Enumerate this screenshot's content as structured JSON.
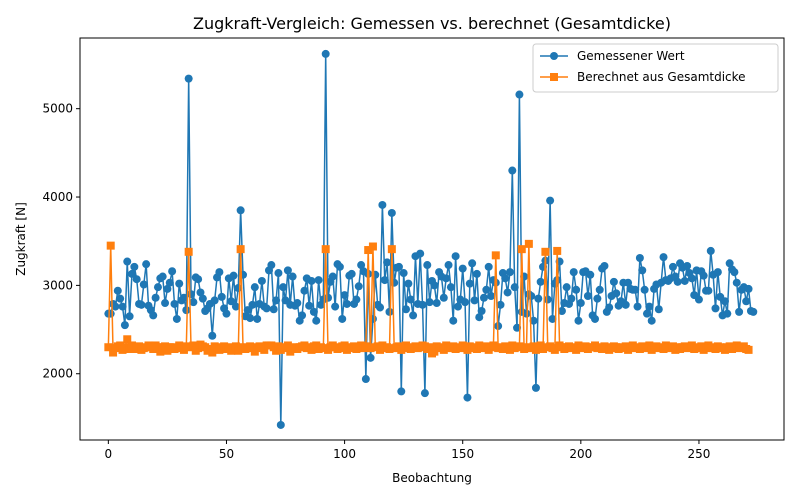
{
  "chart_data": {
    "type": "line",
    "title": "Zugkraft-Vergleich: Gemessen vs. berechnet (Gesamtdicke)",
    "xlabel": "Beobachtung",
    "ylabel": "Zugkraft [N]",
    "xlim": [
      -12,
      286
    ],
    "ylim": [
      1250,
      5800
    ],
    "xticks": [
      0,
      50,
      100,
      150,
      200,
      250
    ],
    "yticks": [
      2000,
      3000,
      4000,
      5000
    ],
    "grid": false,
    "legend_position": "upper right",
    "colors": {
      "measured": "#1f77b4",
      "computed": "#ff7f0e"
    },
    "series": [
      {
        "name": "Gemessener Wert",
        "marker": "circle",
        "values": [
          2680,
          2680,
          2790,
          2760,
          2940,
          2850,
          2760,
          2550,
          3270,
          2650,
          3130,
          3210,
          3070,
          2790,
          2780,
          3010,
          3240,
          2770,
          2720,
          2660,
          2860,
          2980,
          3080,
          3100,
          2800,
          2960,
          3030,
          3160,
          2790,
          2620,
          3020,
          2830,
          2860,
          2720,
          5340,
          2900,
          2810,
          3090,
          3070,
          2920,
          2850,
          2710,
          2740,
          2790,
          2430,
          2830,
          3090,
          3150,
          2870,
          2740,
          2680,
          3080,
          2820,
          3110,
          2760,
          2970,
          3850,
          3120,
          2650,
          2720,
          2630,
          2780,
          2980,
          2620,
          2790,
          3050,
          2760,
          2740,
          3170,
          3230,
          2730,
          2830,
          3140,
          1420,
          2980,
          2830,
          3170,
          2780,
          3100,
          2770,
          2800,
          2600,
          2660,
          2940,
          3080,
          2770,
          3050,
          2700,
          2600,
          3060,
          2780,
          2840,
          5620,
          2860,
          3040,
          3100,
          2760,
          3240,
          3210,
          2620,
          2890,
          2790,
          3110,
          3130,
          2790,
          2840,
          2990,
          3230,
          3160,
          1940,
          3130,
          2180,
          2620,
          3120,
          2780,
          2750,
          3910,
          3060,
          3260,
          2700,
          3820,
          3030,
          3200,
          3210,
          1800,
          3140,
          2730,
          3020,
          2840,
          2660,
          3330,
          2790,
          3360,
          2780,
          1780,
          3230,
          2810,
          3050,
          3000,
          2800,
          3150,
          3100,
          2860,
          3080,
          3230,
          2980,
          2600,
          3330,
          2760,
          2840,
          3190,
          2810,
          1730,
          3020,
          3250,
          2830,
          3130,
          2640,
          2710,
          2860,
          2950,
          3210,
          2880,
          3060,
          3030,
          2540,
          2780,
          3140,
          3080,
          2920,
          3150,
          4300,
          2980,
          2520,
          5160,
          2700,
          3100,
          2680,
          2900,
          2880,
          2600,
          1840,
          2850,
          3040,
          3210,
          3280,
          2840,
          3960,
          2620,
          3020,
          3060,
          3270,
          2710,
          2800,
          2980,
          2790,
          2850,
          3150,
          2950,
          2600,
          2800,
          3150,
          3160,
          2880,
          3120,
          2660,
          2620,
          2850,
          2950,
          3190,
          3220,
          2700,
          2750,
          2880,
          3040,
          2910,
          2770,
          2820,
          3030,
          2780,
          3030,
          2960,
          2950,
          2950,
          2760,
          3310,
          3170,
          2950,
          2680,
          2760,
          2600,
          2960,
          3010,
          2730,
          3030,
          3320,
          3060,
          3050,
          3080,
          3210,
          3100,
          3040,
          3250,
          3200,
          3050,
          3220,
          3140,
          3080,
          2890,
          3170,
          2840,
          3160,
          3110,
          2940,
          2940,
          3390,
          3120,
          2740,
          3150,
          2870,
          2660,
          2820,
          2680,
          3250,
          3180,
          3150,
          3030,
          2700,
          2950,
          2980,
          2820,
          2960,
          2710,
          2700
        ]
      },
      {
        "name": "Berechnet aus Gesamtdicke",
        "marker": "square",
        "values": [
          2300,
          3450,
          2240,
          2290,
          2310,
          2320,
          2270,
          2300,
          2390,
          2280,
          2320,
          2280,
          2300,
          2310,
          2270,
          2290,
          2300,
          2320,
          2300,
          2280,
          2320,
          2300,
          2250,
          2300,
          2310,
          2260,
          2300,
          2300,
          2280,
          2290,
          2320,
          2300,
          2270,
          2310,
          3380,
          2300,
          2320,
          2260,
          2290,
          2330,
          2310,
          2300,
          2260,
          2280,
          2240,
          2310,
          2290,
          2270,
          2300,
          2310,
          2280,
          2300,
          2260,
          2290,
          2310,
          2260,
          3410,
          2300,
          2280,
          2290,
          2310,
          2300,
          2250,
          2290,
          2310,
          2300,
          2270,
          2320,
          2320,
          2320,
          2300,
          2260,
          2310,
          2270,
          2290,
          2300,
          2320,
          2250,
          2290,
          2300,
          2280,
          2300,
          2310,
          2320,
          2290,
          2300,
          2270,
          2310,
          2320,
          2280,
          2300,
          2290,
          3410,
          2270,
          2300,
          2320,
          2300,
          2280,
          2290,
          2310,
          2320,
          2270,
          2290,
          2300,
          2310,
          2280,
          2300,
          2320,
          2290,
          2310,
          3400,
          2290,
          3440,
          2300,
          2310,
          2270,
          2320,
          2290,
          2300,
          2280,
          3410,
          2290,
          2300,
          2310,
          2270,
          2300,
          2320,
          2290,
          2280,
          2300,
          2310,
          2290,
          2300,
          2320,
          2310,
          2280,
          2300,
          2230,
          2250,
          2310,
          2290,
          2300,
          2270,
          2320,
          2290,
          2300,
          2310,
          2280,
          2300,
          2290,
          2320,
          2300,
          2270,
          2310,
          2290,
          2300,
          2280,
          2320,
          2290,
          2300,
          2310,
          2270,
          2300,
          2320,
          3340,
          2290,
          2300,
          2280,
          2310,
          2300,
          2270,
          2320,
          2290,
          2300,
          2310,
          3410,
          2280,
          2300,
          3470,
          2290,
          2310,
          2270,
          2300,
          2320,
          2280,
          3380,
          2300,
          2310,
          2290,
          2270,
          3390,
          2320,
          2300,
          2280,
          2300,
          2310,
          2290,
          2300,
          2270,
          2320,
          2290,
          2300,
          2310,
          2280,
          2300,
          2300,
          2320,
          2290,
          2300,
          2280,
          2310,
          2300,
          2270,
          2290,
          2310,
          2300,
          2280,
          2300,
          2290,
          2310,
          2270,
          2300,
          2320,
          2290,
          2300,
          2280,
          2310,
          2300,
          2290,
          2320,
          2270,
          2300,
          2310,
          2290,
          2300,
          2280,
          2320,
          2300,
          2290,
          2310,
          2270,
          2300,
          2280,
          2300,
          2310,
          2290,
          2300,
          2320,
          2280,
          2290,
          2300,
          2310,
          2270,
          2300,
          2320,
          2290,
          2300,
          2280,
          2310,
          2300,
          2290,
          2270,
          2300,
          2310,
          2280,
          2300,
          2320,
          2290,
          2300,
          2310,
          2280,
          2270
        ]
      }
    ]
  }
}
